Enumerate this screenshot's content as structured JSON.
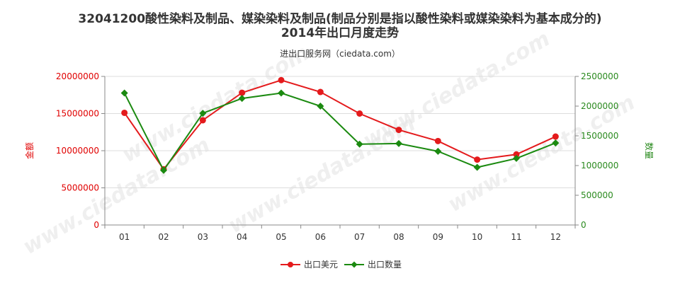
{
  "title_line1": "32041200酸性染料及制品、媒染染料及制品(制品分别是指以酸性染料或媒染染料为基本成分的)",
  "title_line2": "2014年出口月度走势",
  "source": "进出口服务网（ciedata.com）",
  "watermark": "www.ciedata.com",
  "colors": {
    "left_axis": "#e00000",
    "right_axis": "#2a8a1e",
    "series_amount": "#e41a1c",
    "series_qty": "#1b8a10",
    "grid": "#dddddd"
  },
  "chart_data": {
    "type": "line",
    "categories": [
      "01",
      "02",
      "03",
      "04",
      "05",
      "06",
      "07",
      "08",
      "09",
      "10",
      "11",
      "12"
    ],
    "ylabel_left": "金额",
    "ylabel_right": "数量",
    "ylim_left": [
      0,
      20000000
    ],
    "ylim_right": [
      0,
      2500000
    ],
    "yticks_left": [
      "0",
      "5000000",
      "10000000",
      "15000000",
      "20000000"
    ],
    "yticks_right": [
      "0",
      "500000",
      "1000000",
      "1500000",
      "2000000",
      "2500000"
    ],
    "legend_position": "bottom-center",
    "series": [
      {
        "name": "出口美元",
        "axis": "left",
        "values": [
          15100000,
          7500000,
          14100000,
          17800000,
          19500000,
          17900000,
          15000000,
          12800000,
          11300000,
          8800000,
          9500000,
          11900000
        ]
      },
      {
        "name": "出口数量",
        "axis": "right",
        "values": [
          2220000,
          920000,
          1880000,
          2130000,
          2220000,
          2000000,
          1360000,
          1370000,
          1240000,
          970000,
          1120000,
          1380000
        ]
      }
    ]
  }
}
